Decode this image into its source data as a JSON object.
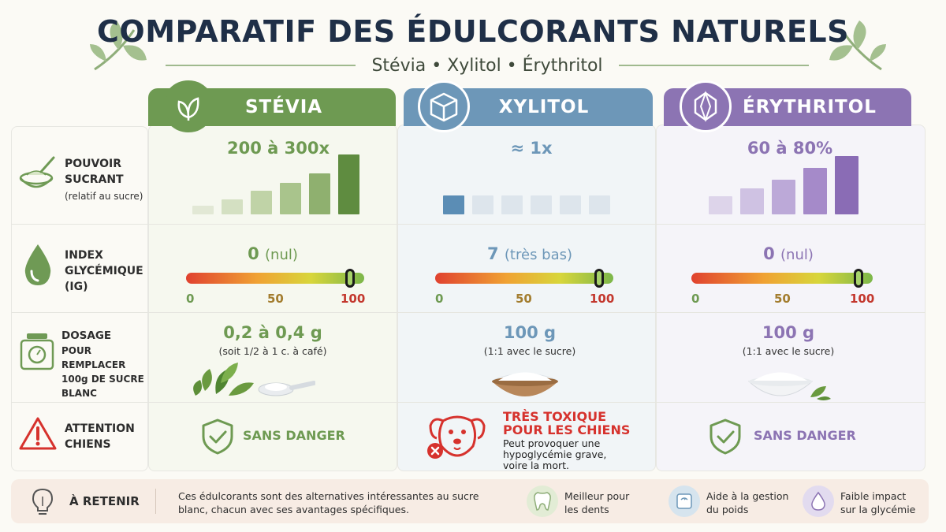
{
  "header": {
    "title": "COMPARATIF DES ÉDULCORANTS NATURELS",
    "subtitle": "Stévia • Xylitol • Érythritol"
  },
  "colors": {
    "green": "#6e9a52",
    "blue": "#6d97b8",
    "purple": "#8c74b3",
    "danger": "#d6322d",
    "navy": "#1f2f47"
  },
  "rows": {
    "sweetness": {
      "title": "POUVOIR SUCRANT",
      "sub": "(relatif au sucre)",
      "icon": "sugar-bowl-icon"
    },
    "glycemic": {
      "title": "INDEX GLYCÉMIQUE (IG)",
      "icon": "drop-icon"
    },
    "dosage": {
      "title": "DOSAGE",
      "sub": "POUR REMPLACER 100g DE SUCRE BLANC",
      "icon": "scale-icon"
    },
    "warning": {
      "title": "ATTENTION CHIENS",
      "icon": "warning-icon"
    }
  },
  "gauge": {
    "min": "0",
    "mid": "50",
    "max": "100"
  },
  "columns": [
    {
      "name": "STÉVIA",
      "icon": "leaf-icon",
      "sweetness": "200 à 300x",
      "sweet_bars": [
        0.15,
        0.25,
        0.4,
        0.52,
        0.68,
        1.0
      ],
      "sweet_bars_active": 6,
      "ig_value": "0",
      "ig_note": "(nul)",
      "ig_level": 0.92,
      "dosage": "0,2 à 0,4 g",
      "dosage_note": "(soit 1/2 à 1 c. à café)",
      "safety": "SANS DANGER"
    },
    {
      "name": "XYLITOL",
      "icon": "cube-icon",
      "sweetness": "≈ 1x",
      "sweet_bars": [
        1,
        1,
        1,
        1,
        1,
        1
      ],
      "sweet_bars_active": 1,
      "ig_value": "7",
      "ig_note": "(très bas)",
      "ig_level": 0.92,
      "dosage": "100 g",
      "dosage_note": "(1:1 avec le sucre)",
      "danger_title": "TRÈS TOXIQUE POUR LES CHIENS",
      "danger_text": "Peut provoquer une hypoglycémie grave, voire la mort."
    },
    {
      "name": "ÉRYTHRITOL",
      "icon": "crystal-icon",
      "sweetness": "60 à 80%",
      "sweet_bars": [
        0.3,
        0.43,
        0.58,
        0.77,
        0.98
      ],
      "sweet_bars_active": 5,
      "ig_value": "0",
      "ig_note": "(nul)",
      "ig_level": 0.92,
      "dosage": "100 g",
      "dosage_note": "(1:1 avec le sucre)",
      "safety": "SANS DANGER"
    }
  ],
  "footer": {
    "title": "À RETENIR",
    "text": "Ces édulcorants sont des alternatives intéressantes au sucre blanc, chacun avec ses avantages spécifiques.",
    "benefits": [
      {
        "label": "Meilleur pour les dents",
        "icon": "tooth-icon"
      },
      {
        "label": "Aide à la gestion du poids",
        "icon": "weight-scale-icon"
      },
      {
        "label": "Faible impact sur la glycémie",
        "icon": "drop-icon"
      }
    ]
  }
}
